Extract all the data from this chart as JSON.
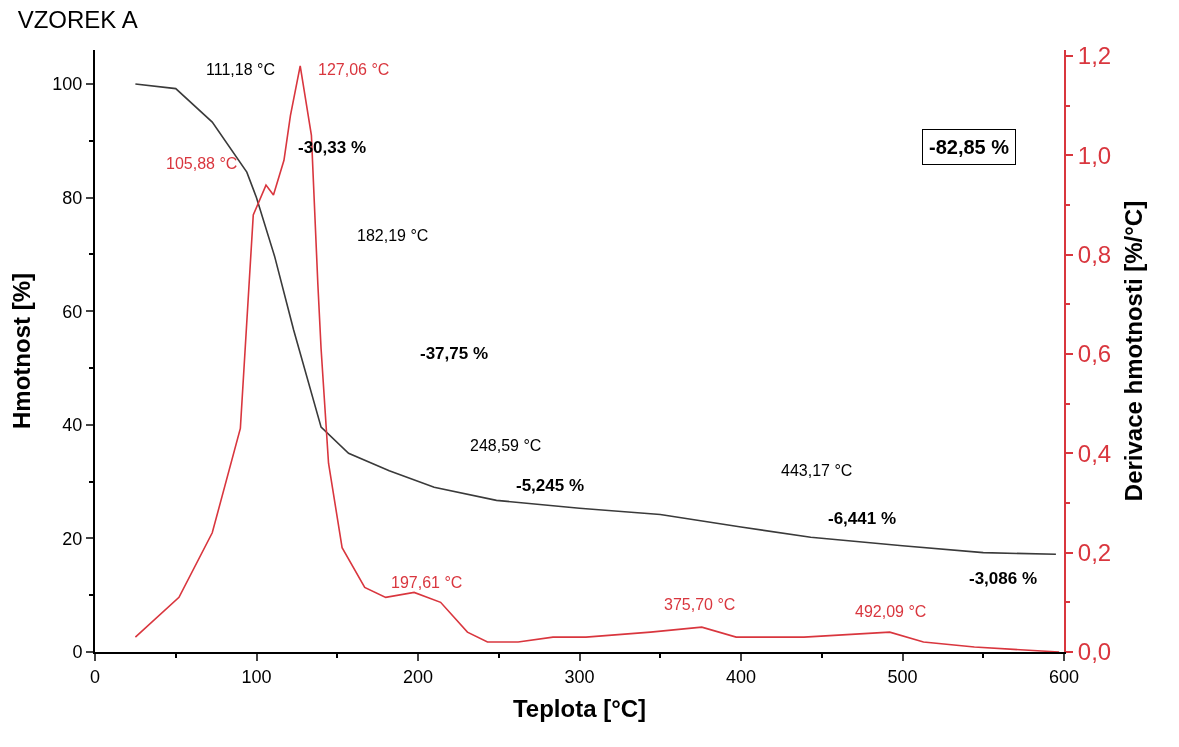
{
  "chart_data": {
    "type": "line",
    "title": "VZOREK A",
    "xlabel": "Teplota [°C]",
    "ylabel": "Hmotnost [%]",
    "y2label": "Derivace hmotnosti [%/°C]",
    "xlim": [
      0,
      600
    ],
    "xticks": [
      0,
      100,
      200,
      300,
      400,
      500,
      600
    ],
    "ylim": [
      0,
      106
    ],
    "yticks": [
      0,
      20,
      40,
      60,
      80,
      100
    ],
    "y2lim": [
      0,
      1.212
    ],
    "y2ticks": [
      {
        "value": 0,
        "label": "0,0"
      },
      {
        "value": 0.2,
        "label": "0,2"
      },
      {
        "value": 0.4,
        "label": "0,4"
      },
      {
        "value": 0.6,
        "label": "0,6"
      },
      {
        "value": 0.8,
        "label": "0,8"
      },
      {
        "value": 1.0,
        "label": "1,0"
      },
      {
        "value": 1.2,
        "label": "1,2"
      }
    ],
    "marker": "none",
    "line_style": "solid",
    "series": [
      {
        "color": "#3a3a3a",
        "x": [
          25,
          50,
          72.6,
          94,
          100,
          111.18,
          123,
          140,
          157,
          182.19,
          210,
          248.59,
          300,
          350,
          400,
          443.17,
          500,
          550,
          595
        ],
        "values": [
          100,
          99.2,
          93.3,
          84.5,
          80,
          69.7,
          56.7,
          39.6,
          35,
          31.9,
          29,
          26.7,
          25.3,
          24.2,
          22,
          20.2,
          18.7,
          17.5,
          17.2
        ]
      },
      {
        "color": "#d9363e",
        "axis": "y2",
        "x": [
          25,
          52,
          72.6,
          90,
          98,
          105.88,
          110.5,
          117,
          121,
          127.06,
          134,
          138,
          140,
          144.6,
          153,
          167,
          180,
          197.61,
          214,
          230.6,
          243,
          262,
          283.6,
          304,
          344,
          375.7,
          397,
          439,
          492.09,
          513,
          544.5,
          597
        ],
        "values": [
          0.03,
          0.11,
          0.24,
          0.45,
          0.88,
          0.94,
          0.92,
          0.99,
          1.08,
          1.18,
          1.04,
          0.74,
          0.61,
          0.38,
          0.21,
          0.13,
          0.11,
          0.12,
          0.1,
          0.04,
          0.02,
          0.02,
          0.03,
          0.03,
          0.04,
          0.05,
          0.03,
          0.03,
          0.04,
          0.02,
          0.01,
          0.0
        ]
      }
    ],
    "annotations": [
      "111,18 °C",
      "127,06 °C",
      "105,88 °C",
      "-30,33 %",
      "182,19 °C",
      "-37,75 %",
      "248,59 °C",
      "-5,245 %",
      "443,17 °C",
      "-6,441 %",
      "-3,086 %",
      "-82,85 %",
      "197,61 °C",
      "375,70 °C",
      "492,09 °C"
    ]
  }
}
